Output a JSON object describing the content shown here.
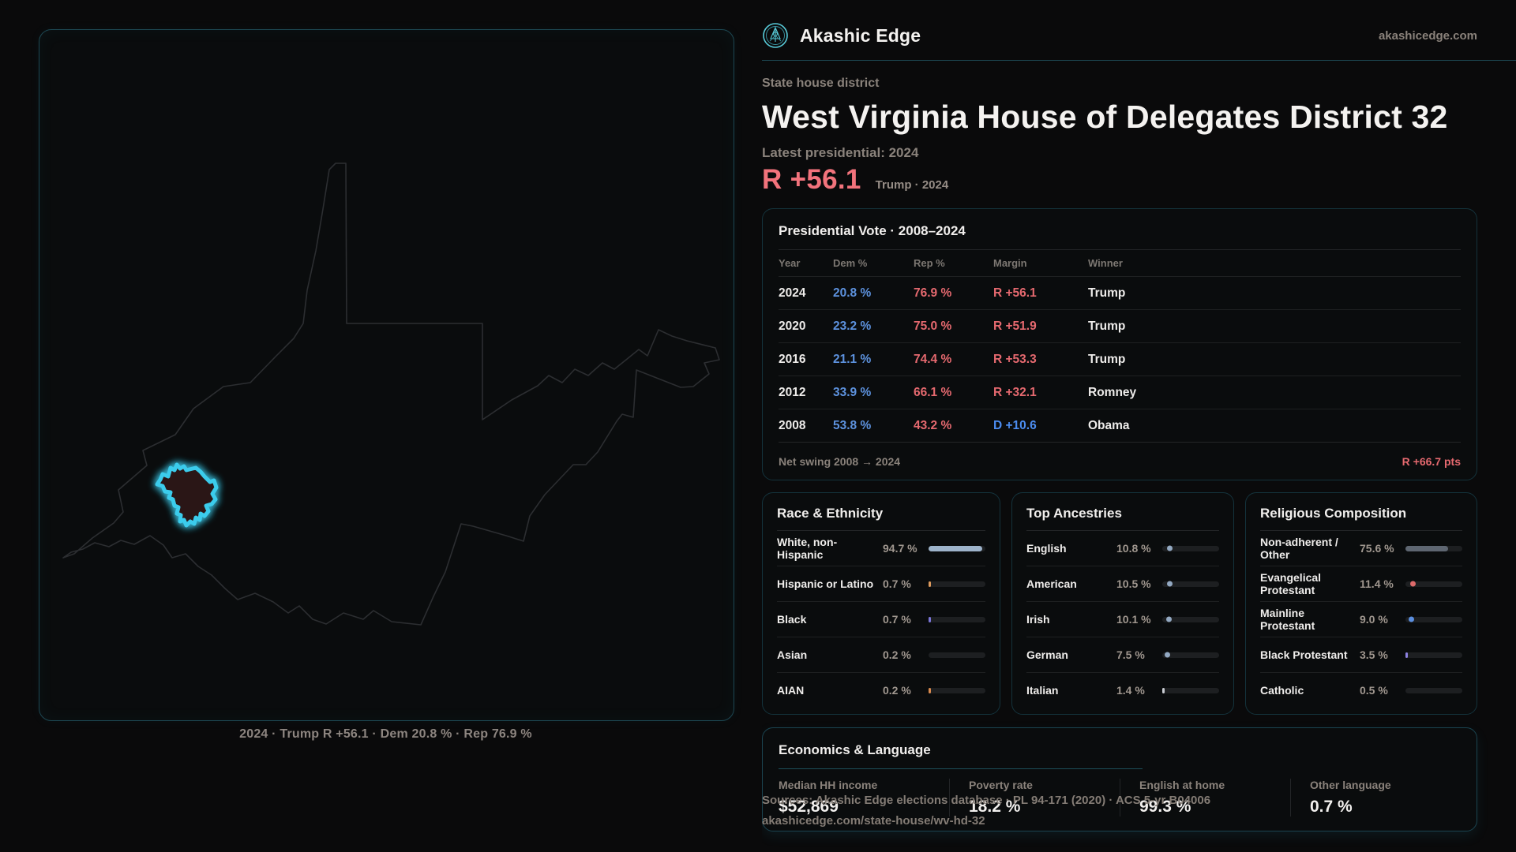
{
  "brand": {
    "name": "Akashic Edge",
    "domain": "akashicedge.com"
  },
  "header": {
    "kicker": "State house district",
    "title": "West Virginia House of Delegates District 32",
    "latest_label": "Latest presidential: 2024",
    "margin_value": "R +56.1",
    "margin_context": "Trump · 2024"
  },
  "colors": {
    "accent_teal": "#3accec",
    "rep_red": "#e5696f",
    "big_margin_red": "#f2737c",
    "dem_blue": "#5d92de"
  },
  "map": {
    "caption": "2024 · Trump R +56.1 · Dem 20.8 % · Rep 76.9 %",
    "district_stroke": "#3accec",
    "district_fill": "#2a1518",
    "state_outline": "#2c2e31"
  },
  "vote_table": {
    "title": "Presidential Vote · 2008–2024",
    "columns": [
      "Year",
      "Dem %",
      "Rep %",
      "Margin",
      "Winner"
    ],
    "rows": [
      {
        "year": "2024",
        "dem": "20.8 %",
        "rep": "76.9 %",
        "margin": "R +56.1",
        "margin_color": "#e5696f",
        "winner": "Trump"
      },
      {
        "year": "2020",
        "dem": "23.2 %",
        "rep": "75.0 %",
        "margin": "R +51.9",
        "margin_color": "#e5696f",
        "winner": "Trump"
      },
      {
        "year": "2016",
        "dem": "21.1 %",
        "rep": "74.4 %",
        "margin": "R +53.3",
        "margin_color": "#e5696f",
        "winner": "Trump"
      },
      {
        "year": "2012",
        "dem": "33.9 %",
        "rep": "66.1 %",
        "margin": "R +32.1",
        "margin_color": "#e5696f",
        "winner": "Romney"
      },
      {
        "year": "2008",
        "dem": "53.8 %",
        "rep": "43.2 %",
        "margin": "D +10.6",
        "margin_color": "#4c8df0",
        "winner": "Obama"
      }
    ],
    "footer_label": "Net swing 2008 → 2024",
    "footer_value": "R +66.7 pts"
  },
  "race": {
    "title": "Race & Ethnicity",
    "rows": [
      {
        "label": "White, non-Hispanic",
        "value": "94.7 %",
        "pct": 94.7,
        "marker": "bar",
        "color": "#9db3ca"
      },
      {
        "label": "Hispanic or Latino",
        "value": "0.7 %",
        "pct": 0.7,
        "marker": "tick",
        "color": "#dd9a5d"
      },
      {
        "label": "Black",
        "value": "0.7 %",
        "pct": 0.7,
        "marker": "tick",
        "color": "#7b76d8"
      },
      {
        "label": "Asian",
        "value": "0.2 %",
        "pct": 0.2,
        "marker": "none",
        "color": "#9db3ca"
      },
      {
        "label": "AIAN",
        "value": "0.2 %",
        "pct": 0.2,
        "marker": "tick",
        "color": "#d98a4e"
      }
    ]
  },
  "ancestries": {
    "title": "Top Ancestries",
    "rows": [
      {
        "label": "English",
        "value": "10.8 %",
        "pct": 10.8,
        "marker": "dot",
        "color": "#93a9c2"
      },
      {
        "label": "American",
        "value": "10.5 %",
        "pct": 10.5,
        "marker": "dot",
        "color": "#93a9c2"
      },
      {
        "label": "Irish",
        "value": "10.1 %",
        "pct": 10.1,
        "marker": "dot",
        "color": "#93a9c2"
      },
      {
        "label": "German",
        "value": "7.5 %",
        "pct": 7.5,
        "marker": "dot",
        "color": "#93a9c2"
      },
      {
        "label": "Italian",
        "value": "1.4 %",
        "pct": 1.4,
        "marker": "tick",
        "color": "#c9ccd2"
      }
    ]
  },
  "religion": {
    "title": "Religious Composition",
    "rows": [
      {
        "label": "Non-adherent / Other",
        "value": "75.6 %",
        "pct": 75.6,
        "marker": "bar",
        "color": "#5e6671"
      },
      {
        "label": "Evangelical Protestant",
        "value": "11.4 %",
        "pct": 11.4,
        "marker": "dot",
        "color": "#dd6a6a"
      },
      {
        "label": "Mainline Protestant",
        "value": "9.0 %",
        "pct": 9.0,
        "marker": "dot",
        "color": "#5b8fe0"
      },
      {
        "label": "Black Protestant",
        "value": "3.5 %",
        "pct": 3.5,
        "marker": "tick",
        "color": "#8d82e0"
      },
      {
        "label": "Catholic",
        "value": "0.5 %",
        "pct": 0.5,
        "marker": "none",
        "color": "#9db3ca"
      }
    ]
  },
  "economics": {
    "title": "Economics & Language",
    "stats": [
      {
        "label": "Median HH income",
        "value": "$52,869"
      },
      {
        "label": "Poverty rate",
        "value": "18.2 %"
      },
      {
        "label": "English at home",
        "value": "99.3 %"
      },
      {
        "label": "Other language",
        "value": "0.7 %"
      }
    ]
  },
  "source": {
    "line1": "Sources: Akashic Edge elections database · PL 94-171 (2020) · ACS 5-yr B04006",
    "line2": "akashicedge.com/state-house/wv-hd-32"
  }
}
